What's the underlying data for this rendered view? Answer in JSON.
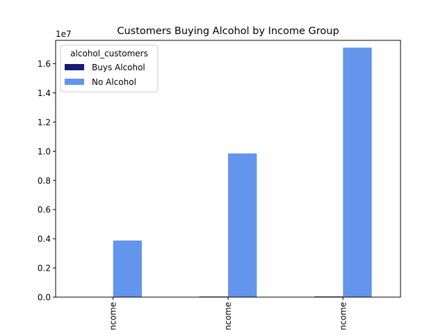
{
  "chart_data": {
    "type": "bar",
    "title": "Customers Buying Alcohol by Income Group",
    "xlabel": "",
    "ylabel": "",
    "y_offset_label": "1e7",
    "categories": [
      "ncome",
      "ncome",
      "ncome"
    ],
    "series": [
      {
        "name": "Buys Alcohol",
        "values": [
          3000,
          40000,
          45000
        ],
        "color": "#191970"
      },
      {
        "name": "No Alcohol",
        "values": [
          3880000,
          9850000,
          17100000
        ],
        "color": "#6495ED"
      }
    ],
    "ylim": [
      0,
      17600000
    ],
    "y_ticks": [
      {
        "value": 0,
        "label": "0.0"
      },
      {
        "value": 2000000,
        "label": "0.2"
      },
      {
        "value": 4000000,
        "label": "0.4"
      },
      {
        "value": 6000000,
        "label": "0.6"
      },
      {
        "value": 8000000,
        "label": "0.8"
      },
      {
        "value": 10000000,
        "label": "1.0"
      },
      {
        "value": 12000000,
        "label": "1.2"
      },
      {
        "value": 14000000,
        "label": "1.4"
      },
      {
        "value": 16000000,
        "label": "1.6"
      }
    ],
    "legend": {
      "title": "alcohol_customers",
      "placement": "upper-left"
    },
    "grid": false
  }
}
